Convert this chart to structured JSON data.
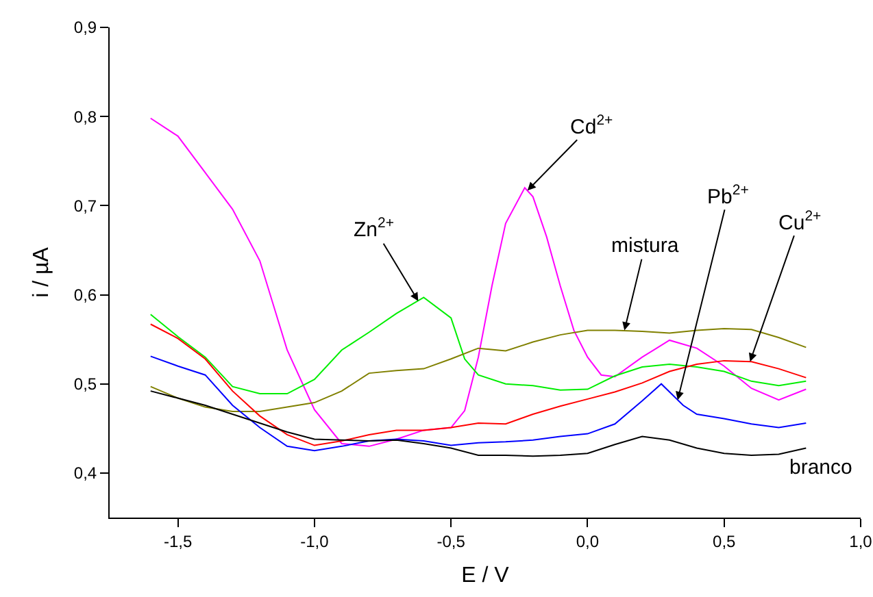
{
  "chart_data": {
    "type": "line",
    "xlabel": "E / V",
    "ylabel": "i / µA",
    "x": [
      -1.6,
      -1.5,
      -1.4,
      -1.3,
      -1.2,
      -1.1,
      -1.0,
      -0.9,
      -0.8,
      -0.7,
      -0.6,
      -0.5,
      -0.4,
      -0.3,
      -0.2,
      -0.1,
      0.0,
      0.1,
      0.2,
      0.3,
      0.4,
      0.5,
      0.6,
      0.7,
      0.8
    ],
    "series": [
      {
        "color": "#ff00ff",
        "x": [
          -1.6,
          -1.5,
          -1.4,
          -1.3,
          -1.2,
          -1.1,
          -1.0,
          -0.9,
          -0.8,
          -0.7,
          -0.6,
          -0.5,
          -0.45,
          -0.4,
          -0.35,
          -0.3,
          -0.23,
          -0.2,
          -0.15,
          -0.1,
          -0.05,
          0.0,
          0.05,
          0.1,
          0.2,
          0.3,
          0.4,
          0.5,
          0.6,
          0.7,
          0.8
        ],
        "values": [
          0.798,
          0.778,
          0.737,
          0.696,
          0.638,
          0.538,
          0.471,
          0.433,
          0.43,
          0.438,
          0.448,
          0.451,
          0.47,
          0.53,
          0.61,
          0.68,
          0.72,
          0.71,
          0.665,
          0.61,
          0.56,
          0.53,
          0.51,
          0.508,
          0.53,
          0.549,
          0.54,
          0.52,
          0.495,
          0.482,
          0.494
        ]
      },
      {
        "color": "#00ee00",
        "x": [
          -1.6,
          -1.5,
          -1.4,
          -1.3,
          -1.2,
          -1.1,
          -1.0,
          -0.9,
          -0.8,
          -0.7,
          -0.6,
          -0.5,
          -0.45,
          -0.4,
          -0.3,
          -0.2,
          -0.1,
          0.0,
          0.1,
          0.2,
          0.3,
          0.4,
          0.5,
          0.6,
          0.7,
          0.8
        ],
        "values": [
          0.578,
          0.553,
          0.53,
          0.497,
          0.489,
          0.489,
          0.505,
          0.538,
          0.558,
          0.579,
          0.597,
          0.574,
          0.528,
          0.51,
          0.5,
          0.498,
          0.493,
          0.494,
          0.509,
          0.519,
          0.522,
          0.519,
          0.514,
          0.503,
          0.498,
          0.503
        ]
      },
      {
        "color": "#808000",
        "values": [
          0.497,
          0.484,
          0.474,
          0.469,
          0.469,
          0.474,
          0.479,
          0.492,
          0.512,
          0.515,
          0.517,
          0.528,
          0.54,
          0.537,
          0.547,
          0.555,
          0.56,
          0.56,
          0.559,
          0.557,
          0.56,
          0.562,
          0.561,
          0.552,
          0.541
        ]
      },
      {
        "color": "#ff0000",
        "values": [
          0.567,
          0.551,
          0.528,
          0.492,
          0.464,
          0.443,
          0.431,
          0.436,
          0.443,
          0.448,
          0.448,
          0.451,
          0.456,
          0.455,
          0.466,
          0.475,
          0.483,
          0.491,
          0.501,
          0.514,
          0.522,
          0.526,
          0.525,
          0.517,
          0.507
        ]
      },
      {
        "color": "#0000ff",
        "x": [
          -1.6,
          -1.5,
          -1.4,
          -1.3,
          -1.2,
          -1.1,
          -1.0,
          -0.9,
          -0.8,
          -0.7,
          -0.6,
          -0.5,
          -0.4,
          -0.3,
          -0.2,
          -0.1,
          0.0,
          0.1,
          0.2,
          0.27,
          0.35,
          0.4,
          0.5,
          0.6,
          0.7,
          0.8
        ],
        "values": [
          0.531,
          0.52,
          0.51,
          0.476,
          0.451,
          0.43,
          0.425,
          0.43,
          0.436,
          0.438,
          0.436,
          0.431,
          0.434,
          0.435,
          0.437,
          0.441,
          0.444,
          0.455,
          0.481,
          0.5,
          0.476,
          0.466,
          0.461,
          0.455,
          0.451,
          0.456
        ]
      },
      {
        "color": "#000000",
        "values": [
          0.492,
          0.484,
          0.476,
          0.466,
          0.456,
          0.446,
          0.438,
          0.437,
          0.436,
          0.437,
          0.433,
          0.428,
          0.42,
          0.42,
          0.419,
          0.42,
          0.422,
          0.432,
          0.441,
          0.437,
          0.428,
          0.422,
          0.42,
          0.421,
          0.428
        ]
      }
    ],
    "annotations": [
      {
        "text": "Zn$^{2+}$",
        "x": -0.62,
        "y": 0.593
      },
      {
        "text": "Cd$^{2+}$",
        "x": -0.22,
        "y": 0.717
      },
      {
        "text": "mistura",
        "x": 0.135,
        "y": 0.56
      },
      {
        "text": "Pb$^{2+}$",
        "x": 0.33,
        "y": 0.482
      },
      {
        "text": "Cu$^{2+}$",
        "x": 0.595,
        "y": 0.525
      },
      {
        "text": "branco",
        "x": 0.8,
        "y": 0.428
      }
    ],
    "xlim": [
      -1.75,
      1.0
    ],
    "ylim": [
      0.35,
      0.9
    ],
    "xticks": [
      {
        "value": -1.5,
        "label": "-1,5"
      },
      {
        "value": -1.0,
        "label": "-1,0"
      },
      {
        "value": -0.5,
        "label": "-0,5"
      },
      {
        "value": 0.0,
        "label": "0,0"
      },
      {
        "value": 0.5,
        "label": "0,5"
      },
      {
        "value": 1.0,
        "label": "1,0"
      }
    ],
    "yticks": [
      {
        "value": 0.4,
        "label": "0,4"
      },
      {
        "value": 0.5,
        "label": "0,5"
      },
      {
        "value": 0.6,
        "label": "0,6"
      },
      {
        "value": 0.7,
        "label": "0,7"
      },
      {
        "value": 0.8,
        "label": "0,8"
      },
      {
        "value": 0.9,
        "label": "0,9"
      }
    ],
    "grid": false,
    "legend": false,
    "marker": "none",
    "line_style": "solid"
  }
}
